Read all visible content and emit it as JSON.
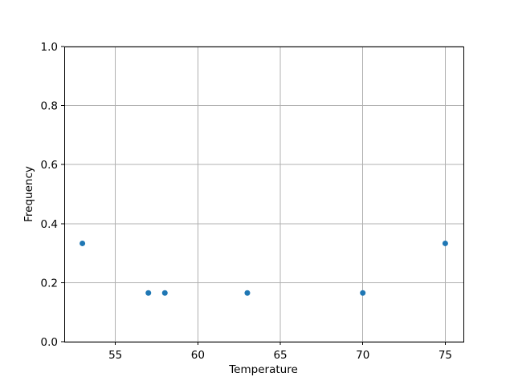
{
  "figure": {
    "background": "#ffffff"
  },
  "chart_data": {
    "type": "scatter",
    "title": "",
    "xlabel": "Temperature",
    "ylabel": "Frequency",
    "x": [
      53,
      57,
      58,
      63,
      70,
      75
    ],
    "y": [
      0.333,
      0.165,
      0.165,
      0.165,
      0.165,
      0.333
    ],
    "xlim": [
      51.9,
      76.1
    ],
    "ylim": [
      0.0,
      1.0
    ],
    "xticks": [
      55,
      60,
      65,
      70,
      75
    ],
    "xtick_labels": [
      "55",
      "60",
      "65",
      "70",
      "75"
    ],
    "yticks": [
      0.0,
      0.2,
      0.4,
      0.6,
      0.8,
      1.0
    ],
    "ytick_labels": [
      "0.0",
      "0.2",
      "0.4",
      "0.6",
      "0.8",
      "1.0"
    ],
    "grid": true,
    "legend_position": "none",
    "marker_color": "#1f77b4",
    "grid_color": "#b0b0b0",
    "axis_color": "#000000"
  }
}
